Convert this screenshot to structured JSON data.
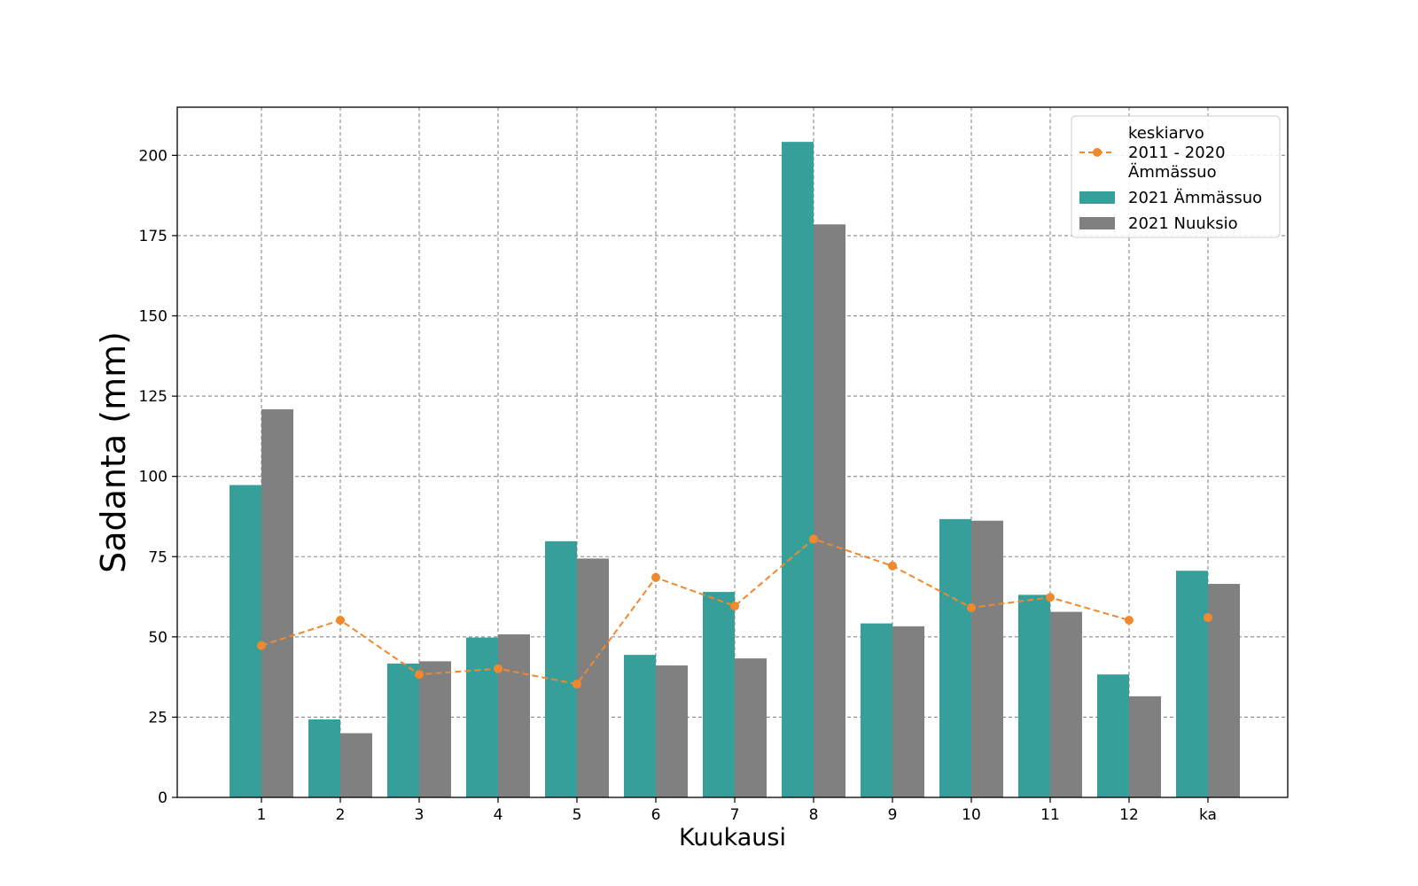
{
  "chart_data": {
    "type": "bar",
    "categories": [
      "1",
      "2",
      "3",
      "4",
      "5",
      "6",
      "7",
      "8",
      "9",
      "10",
      "11",
      "12",
      "ka"
    ],
    "xlabel": "Kuukausi",
    "ylabel": "Sadanta (mm)",
    "ylim": [
      0,
      215
    ],
    "yticks": [
      0,
      25,
      50,
      75,
      100,
      125,
      150,
      175,
      200
    ],
    "grid": true,
    "legend_position": "top-right",
    "series": [
      {
        "name": "2021 Ämmässuo",
        "type": "bar",
        "color": "#379f9a",
        "values": [
          97.3,
          24.3,
          41.7,
          49.8,
          79.8,
          44.4,
          64.0,
          204.2,
          54.2,
          86.7,
          63.1,
          38.3,
          70.6
        ]
      },
      {
        "name": "2021 Nuuksio",
        "type": "bar",
        "color": "#808080",
        "values": [
          120.9,
          20.0,
          42.4,
          50.8,
          74.4,
          41.1,
          43.3,
          178.5,
          53.3,
          86.2,
          57.8,
          31.5,
          66.5
        ]
      },
      {
        "name": "keskiarvo 2011 - 2020 Ämmässuo",
        "type": "line",
        "style": "dashed",
        "marker": "circle",
        "color": "#f0892e",
        "values": [
          47.3,
          55.2,
          38.3,
          40.1,
          35.3,
          68.5,
          59.6,
          80.5,
          72.1,
          59.1,
          62.3,
          55.2,
          56.0
        ]
      }
    ],
    "legend": [
      {
        "lines": [
          "keskiarvo",
          "2011 - 2020",
          "Ämmässuo"
        ],
        "kind": "line",
        "color": "#f0892e"
      },
      {
        "lines": [
          "2021 Ämmässuo"
        ],
        "kind": "bar",
        "color": "#379f9a"
      },
      {
        "lines": [
          "2021 Nuuksio"
        ],
        "kind": "bar",
        "color": "#808080"
      }
    ]
  }
}
